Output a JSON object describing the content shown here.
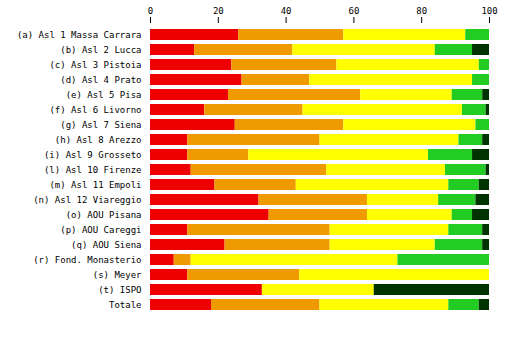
{
  "chart_data": {
    "type": "bar",
    "orientation": "horizontal",
    "stacked": true,
    "categories": [
      "(a) Asl 1 Massa Carrara",
      "(b) Asl 2 Lucca",
      "(c) Asl 3 Pistoia",
      "(d) Asl 4 Prato",
      "(e) Asl 5 Pisa",
      "(f) Asl 6 Livorno",
      "(g) Asl 7 Siena",
      "(h) Asl 8 Arezzo",
      "(i) Asl 9 Grosseto",
      "(l) Asl 10 Firenze",
      "(m) Asl 11 Empoli",
      "(n) Asl 12 Viareggio",
      "(o) AOU Pisana",
      "(p) AOU Careggi",
      "(q) AOU Siena",
      "(r) Fond. Monasterio",
      "(s) Meyer",
      "(t) ISPO",
      "Totale"
    ],
    "series": [
      {
        "color": "#ee0000",
        "values": [
          26,
          13,
          24,
          27,
          23,
          16,
          25,
          11,
          11,
          12,
          19,
          32,
          35,
          11,
          22,
          7,
          11,
          33,
          18
        ]
      },
      {
        "color": "#ee9a00",
        "values": [
          31,
          29,
          31,
          20,
          39,
          29,
          32,
          39,
          18,
          40,
          24,
          32,
          29,
          42,
          31,
          5,
          33,
          0,
          32
        ]
      },
      {
        "color": "#ffff00",
        "values": [
          36,
          42,
          42,
          48,
          27,
          47,
          39,
          41,
          53,
          35,
          45,
          21,
          25,
          35,
          31,
          61,
          56,
          33,
          38
        ]
      },
      {
        "color": "#22cc22",
        "values": [
          7,
          11,
          3,
          5,
          9,
          7,
          4,
          7,
          13,
          12,
          9,
          11,
          6,
          10,
          14,
          27,
          0,
          0,
          9
        ]
      },
      {
        "color": "#003300",
        "values": [
          0,
          5,
          0,
          0,
          2,
          1,
          0,
          2,
          5,
          1,
          3,
          4,
          5,
          2,
          2,
          0,
          0,
          34,
          3
        ]
      }
    ],
    "xlim": [
      0,
      100
    ],
    "xticks": [
      0,
      20,
      40,
      60,
      80,
      100
    ],
    "grid": false
  }
}
